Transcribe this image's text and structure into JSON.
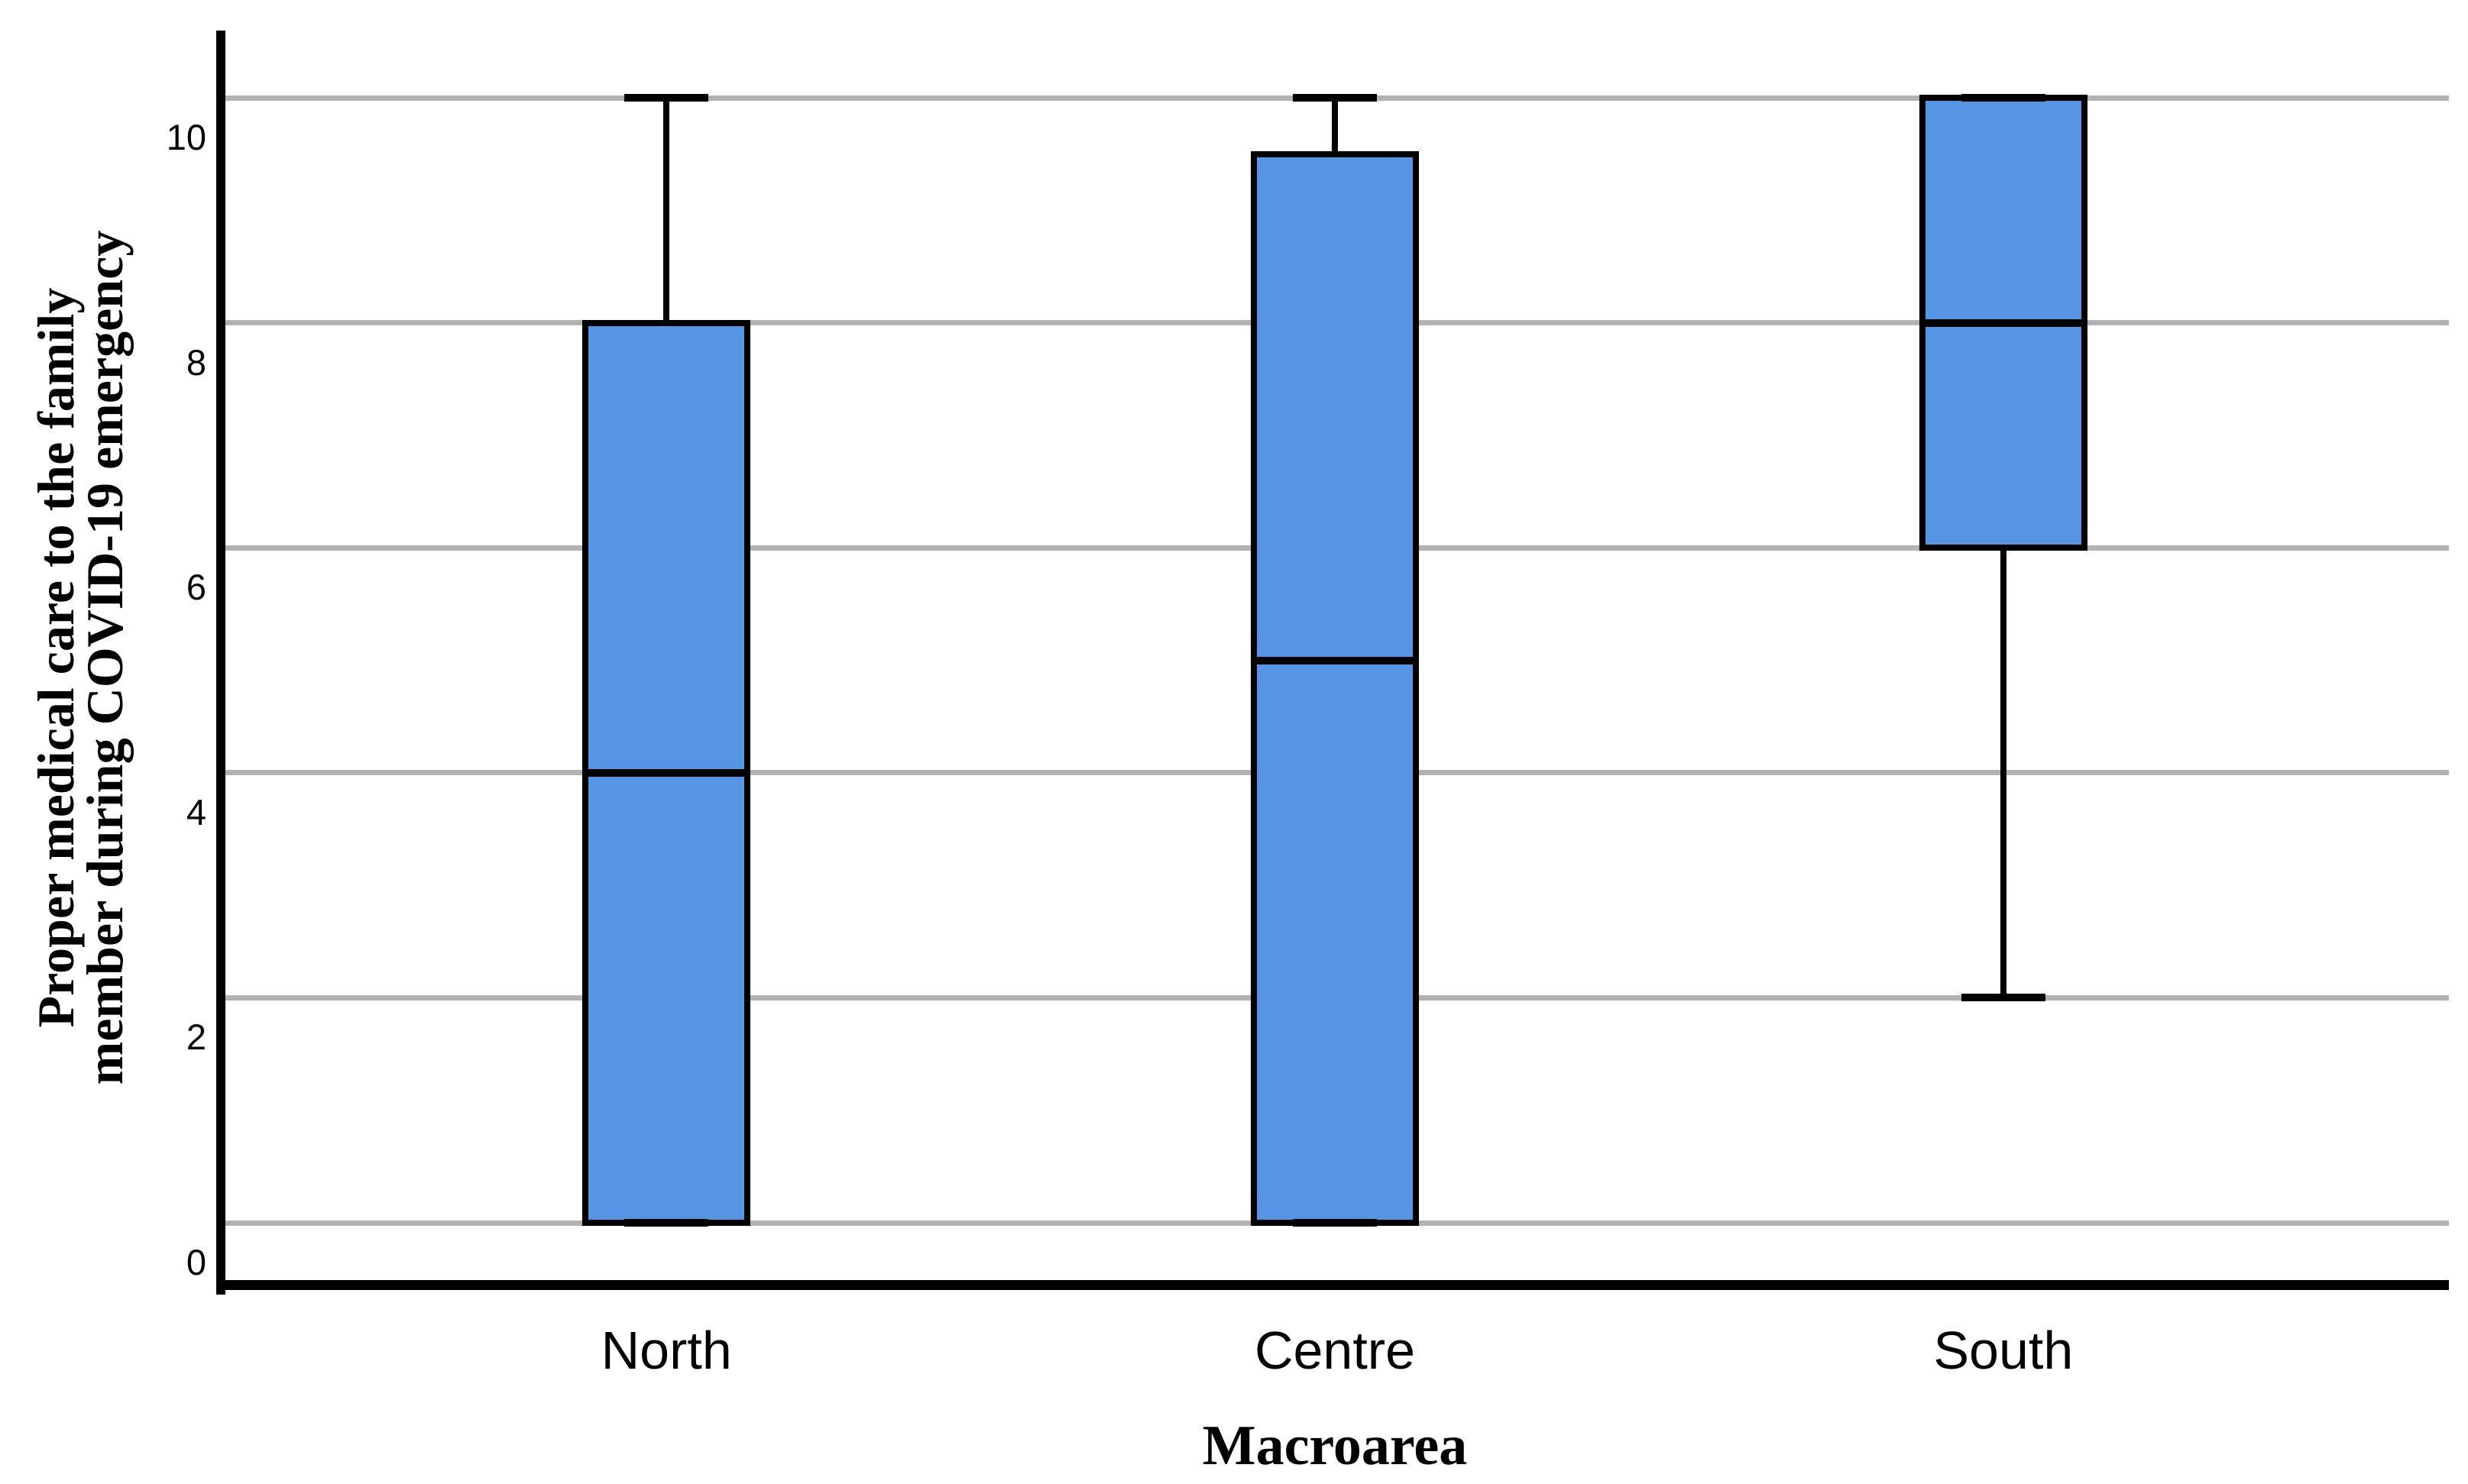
{
  "chart_data": {
    "type": "boxplot",
    "title": "",
    "xlabel": "Macroarea",
    "ylabel": "Proper medical care to the family member during COVID-19 emergency",
    "ylabel_lines": [
      "Proper medical care to the family",
      "member during COVID-19 emergency"
    ],
    "categories": [
      "North",
      "Centre",
      "South"
    ],
    "series": [
      {
        "name": "North",
        "min": 0,
        "q1": 0,
        "median": 4,
        "q3": 8,
        "max": 10
      },
      {
        "name": "Centre",
        "min": 0,
        "q1": 0,
        "median": 5,
        "q3": 9.5,
        "max": 10
      },
      {
        "name": "South",
        "min": 2,
        "q1": 6,
        "median": 8,
        "q3": 10,
        "max": 10
      }
    ],
    "yticks": [
      0,
      2,
      4,
      6,
      8,
      10
    ],
    "ylim": [
      -0.55,
      10.6
    ],
    "grid": "horizontal-only",
    "legend": "none",
    "colors": {
      "box_fill": "#5694e4",
      "box_border": "#000000",
      "gridline": "#b2b2b2",
      "axis": "#000000",
      "text": "#000000",
      "background": "#ffffff"
    }
  }
}
